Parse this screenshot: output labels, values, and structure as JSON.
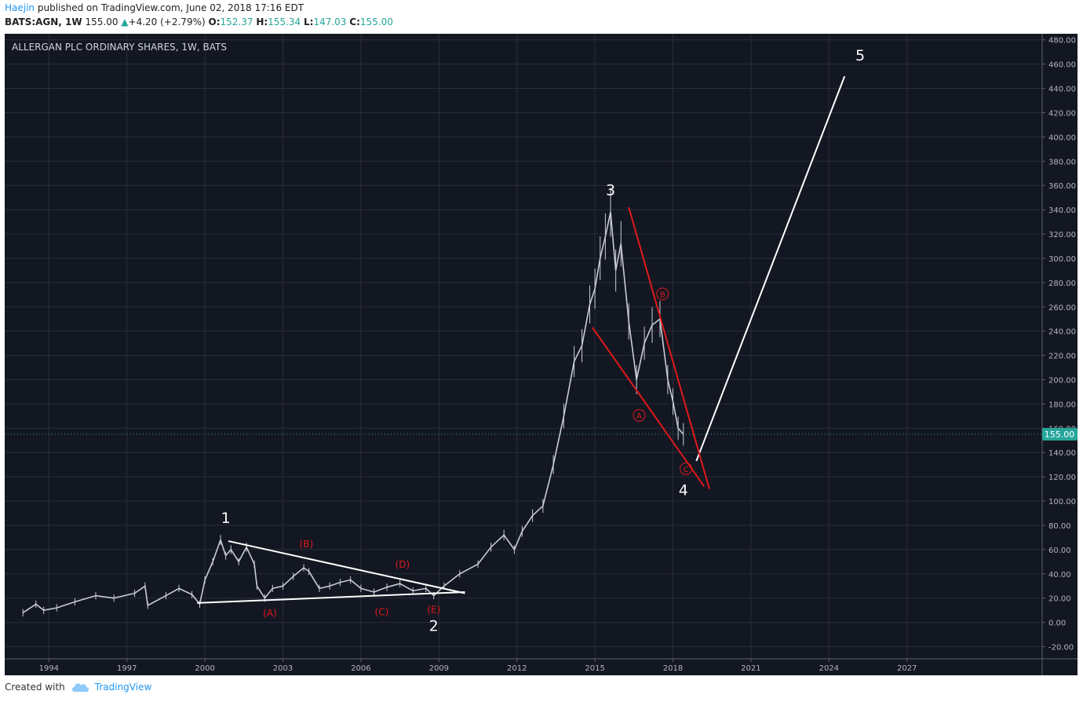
{
  "header": {
    "author": "Haejin",
    "published_text": "published on TradingView.com, June 02, 2018 17:16 EDT",
    "symbol": "BATS:AGN, 1W",
    "last": "155.00",
    "change": "+4.20 (+2.79%)",
    "open_label": "O:",
    "open": "152.37",
    "high_label": "H:",
    "high": "155.34",
    "low_label": "L:",
    "low": "147.03",
    "close_label": "C:",
    "close": "155.00"
  },
  "footer": {
    "created_with": "Created with",
    "brand": "TradingView"
  },
  "colors": {
    "background": "#131722",
    "grid": "#2a2e39",
    "candles": "#c8ccd4",
    "white_lines": "#ffffff",
    "red_lines": "#e0191c",
    "price_tag": "#26a69a"
  },
  "chart_data": {
    "type": "line",
    "title": "ALLERGAN PLC ORDINARY SHARES, 1W, BATS",
    "xlabel": "",
    "ylabel": "",
    "ylim": [
      -30,
      485
    ],
    "xlim": [
      1992.3,
      2032.2
    ],
    "x_ticks": [
      "1994",
      "1997",
      "2000",
      "2003",
      "2006",
      "2009",
      "2012",
      "2015",
      "2018",
      "2021",
      "2024",
      "2027"
    ],
    "y_ticks": [
      "480.00",
      "460.00",
      "440.00",
      "420.00",
      "400.00",
      "380.00",
      "360.00",
      "340.00",
      "320.00",
      "300.00",
      "280.00",
      "260.00",
      "240.00",
      "220.00",
      "200.00",
      "180.00",
      "160.00",
      "140.00",
      "120.00",
      "100.00",
      "80.00",
      "60.00",
      "40.00",
      "20.00",
      "0.00",
      "-20.00"
    ],
    "last_price": "155.00",
    "series": [
      {
        "name": "AGN weekly price (approx.)",
        "x": [
          1993.0,
          1993.5,
          1993.8,
          1994.3,
          1995.0,
          1995.8,
          1996.5,
          1997.3,
          1997.7,
          1997.8,
          1998.5,
          1999.0,
          1999.5,
          1999.8,
          2000.0,
          2000.3,
          2000.6,
          2000.8,
          2001.0,
          2001.3,
          2001.6,
          2001.9,
          2002.0,
          2002.3,
          2002.6,
          2003.0,
          2003.4,
          2003.8,
          2004.0,
          2004.4,
          2004.8,
          2005.2,
          2005.6,
          2006.0,
          2006.5,
          2007.0,
          2007.5,
          2008.0,
          2008.5,
          2008.8,
          2009.2,
          2009.8,
          2010.5,
          2011.0,
          2011.5,
          2011.9,
          2012.2,
          2012.6,
          2013.0,
          2013.4,
          2013.8,
          2014.2,
          2014.5,
          2014.8,
          2015.0,
          2015.2,
          2015.4,
          2015.6,
          2015.8,
          2016.0,
          2016.3,
          2016.6,
          2016.9,
          2017.2,
          2017.5,
          2017.8,
          2018.0,
          2018.2,
          2018.4
        ],
        "values": [
          8,
          15,
          10,
          12,
          17,
          22,
          20,
          24,
          30,
          14,
          22,
          28,
          23,
          15,
          35,
          50,
          68,
          55,
          60,
          50,
          62,
          48,
          30,
          20,
          28,
          30,
          38,
          45,
          42,
          28,
          30,
          33,
          35,
          28,
          25,
          29,
          32,
          26,
          28,
          22,
          30,
          40,
          48,
          62,
          72,
          60,
          75,
          88,
          96,
          130,
          170,
          215,
          228,
          262,
          275,
          300,
          318,
          338,
          290,
          312,
          248,
          200,
          230,
          245,
          250,
          200,
          182,
          160,
          155
        ]
      },
      {
        "name": "Triangle upper trendline",
        "x": [
          2000.9,
          2010.0
        ],
        "values": [
          67,
          24
        ]
      },
      {
        "name": "Triangle lower trendline",
        "x": [
          1999.7,
          2010.0
        ],
        "values": [
          16,
          25
        ]
      },
      {
        "name": "Projected wave 5",
        "x": [
          2018.9,
          2024.6
        ],
        "values": [
          133,
          450
        ]
      },
      {
        "name": "Wedge upper trendline",
        "x": [
          2016.3,
          2019.4
        ],
        "values": [
          342,
          110
        ]
      },
      {
        "name": "Wedge lower trendline",
        "x": [
          2014.9,
          2019.2
        ],
        "values": [
          243,
          112
        ]
      }
    ],
    "annotations": [
      {
        "text": "1",
        "x": 2000.8,
        "y": 82,
        "color": "white"
      },
      {
        "text": "2",
        "x": 2008.8,
        "y": -7,
        "color": "white"
      },
      {
        "text": "3",
        "x": 2015.6,
        "y": 352,
        "color": "white"
      },
      {
        "text": "4",
        "x": 2018.4,
        "y": 105,
        "color": "white"
      },
      {
        "text": "5",
        "x": 2025.2,
        "y": 463,
        "color": "white"
      },
      {
        "text": "(A)",
        "x": 2002.5,
        "y": 5,
        "color": "red"
      },
      {
        "text": "(B)",
        "x": 2003.9,
        "y": 62,
        "color": "red"
      },
      {
        "text": "(C)",
        "x": 2006.8,
        "y": 6,
        "color": "red"
      },
      {
        "text": "(D)",
        "x": 2007.6,
        "y": 45,
        "color": "red"
      },
      {
        "text": "(E)",
        "x": 2008.8,
        "y": 8,
        "color": "red"
      },
      {
        "text": "A",
        "x": 2016.7,
        "y": 168,
        "color": "red",
        "circled": true
      },
      {
        "text": "B",
        "x": 2017.6,
        "y": 268,
        "color": "red",
        "circled": true
      },
      {
        "text": "C",
        "x": 2018.5,
        "y": 124,
        "color": "red",
        "circled": true
      }
    ]
  }
}
